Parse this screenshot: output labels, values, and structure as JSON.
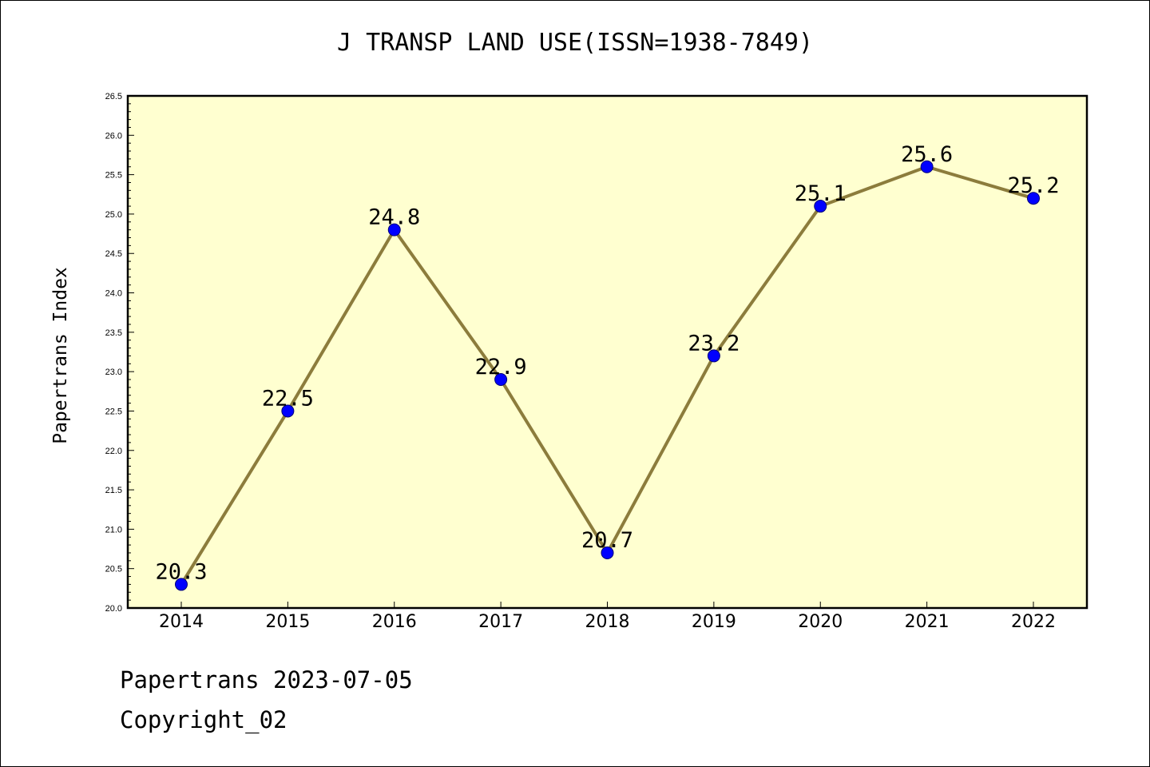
{
  "chart_data": {
    "type": "line",
    "title": "J TRANSP LAND USE(ISSN=1938-7849)",
    "xlabel": "",
    "ylabel": "Papertrans Index",
    "categories": [
      "2014",
      "2015",
      "2016",
      "2017",
      "2018",
      "2019",
      "2020",
      "2021",
      "2022"
    ],
    "series": [
      {
        "values": [
          20.3,
          22.5,
          24.8,
          22.9,
          20.7,
          23.2,
          25.1,
          25.6,
          25.2
        ]
      }
    ],
    "data_labels": [
      "20.3",
      "22.5",
      "24.8",
      "22.9",
      "20.7",
      "23.2",
      "25.1",
      "25.6",
      "25.2"
    ],
    "ylim": [
      20.0,
      26.5
    ],
    "yticks": [
      "20.0",
      "20.5",
      "21.0",
      "21.5",
      "22.0",
      "22.5",
      "23.0",
      "23.5",
      "24.0",
      "24.5",
      "25.0",
      "25.5",
      "26.0",
      "26.5"
    ],
    "grid": false,
    "colors": {
      "plot_background": "#FFFFD0",
      "line": "#8C7C3C",
      "marker": "#0000FF"
    }
  },
  "footer": {
    "line1": "Papertrans 2023-07-05",
    "line2": "Copyright_02"
  }
}
